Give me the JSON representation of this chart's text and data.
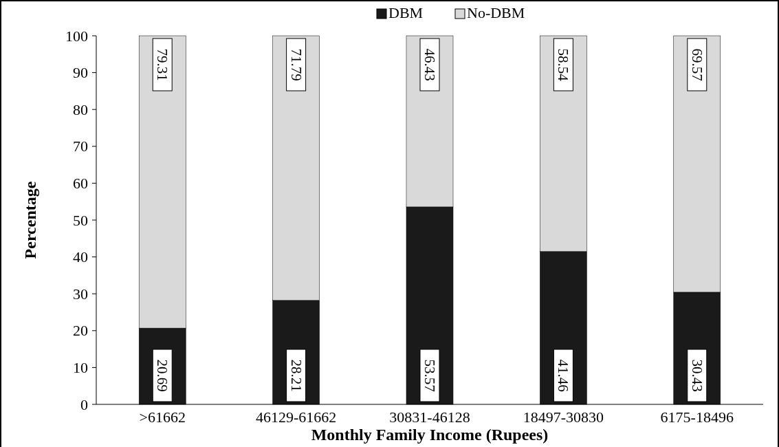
{
  "chart_data": {
    "type": "bar",
    "stacked": true,
    "xlabel": "Monthly Family Income (Rupees)",
    "ylabel": "Percentage",
    "categories": [
      ">61662",
      "46129-61662",
      "30831-46128",
      "18497-30830",
      "6175-18496"
    ],
    "series": [
      {
        "name": "DBM",
        "color": "#1a1a1a",
        "values": [
          20.69,
          28.21,
          53.57,
          41.46,
          30.43
        ]
      },
      {
        "name": "No-DBM",
        "color": "#d9d9d9",
        "values": [
          79.31,
          71.79,
          46.43,
          58.54,
          69.57
        ]
      }
    ],
    "ylim": [
      0,
      100
    ],
    "yticks": [
      0,
      10,
      20,
      30,
      40,
      50,
      60,
      70,
      80,
      90,
      100
    ],
    "grid": false,
    "legend": "top",
    "data_labels": true
  }
}
